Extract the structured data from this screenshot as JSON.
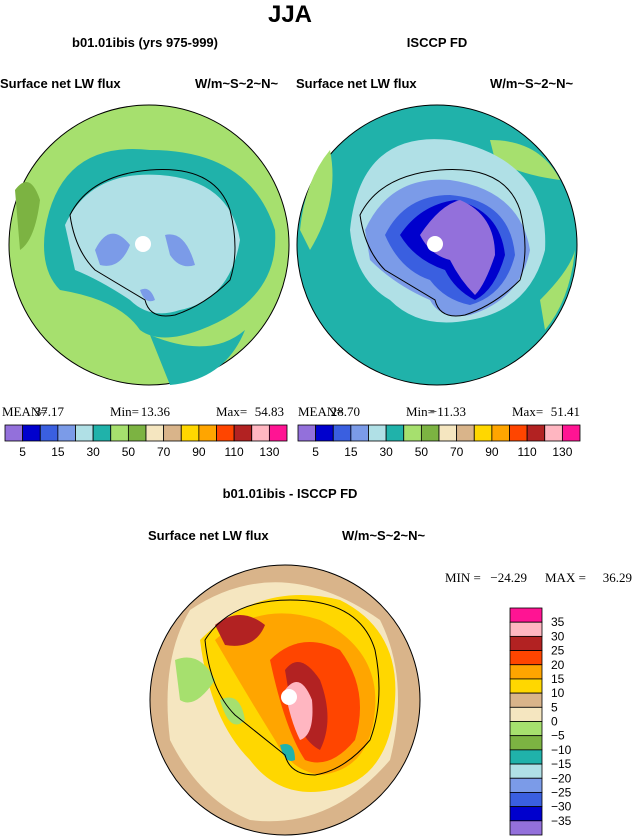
{
  "title": "JJA",
  "panels": [
    {
      "title": "b01.01ibis (yrs 975-999)",
      "left_label": "Surface net LW flux",
      "right_label": "W/m~S~2~N~",
      "stats": [
        "MEAN=",
        "37.17",
        "Min=",
        "13.36",
        "Max=",
        "54.83"
      ]
    },
    {
      "title": "ISCCP FD",
      "left_label": "Surface net LW flux",
      "right_label": "W/m~S~2~N~",
      "stats": [
        "MEAN=",
        "28.70",
        "Min=",
        "−11.33",
        "Max=",
        "51.41"
      ]
    }
  ],
  "colorbar": {
    "colors": [
      "#9370db",
      "#0000cd",
      "#3a5fe0",
      "#7b9be8",
      "#b0e0e6",
      "#20b2aa",
      "#a6e06e",
      "#7cb342",
      "#f5e6c0",
      "#d9b48a",
      "#ffd700",
      "#ffa500",
      "#ff4500",
      "#b22222",
      "#ffb6c1",
      "#ff1493"
    ],
    "labels": [
      "5",
      "15",
      "30",
      "50",
      "70",
      "90",
      "110",
      "130"
    ]
  },
  "difference": {
    "title": "b01.01ibis - ISCCP FD",
    "left_label": "Surface net LW flux",
    "right_label": "W/m~S~2~N~",
    "stats": [
      "MIN = ",
      "−24.29",
      "MAX = ",
      "36.29"
    ]
  },
  "difference_colorbar": {
    "colors": [
      "#ff1493",
      "#ffb6c1",
      "#b22222",
      "#ff4500",
      "#ffa500",
      "#ffd700",
      "#d9b48a",
      "#f5e6c0",
      "#a6e06e",
      "#7cb342",
      "#20b2aa",
      "#b0e0e6",
      "#7b9be8",
      "#3a5fe0",
      "#0000cd",
      "#9370db"
    ],
    "labels": [
      "35",
      "30",
      "25",
      "20",
      "15",
      "10",
      "5",
      "0",
      "−5",
      "−10",
      "−15",
      "−20",
      "−25",
      "−30",
      "−35"
    ]
  }
}
